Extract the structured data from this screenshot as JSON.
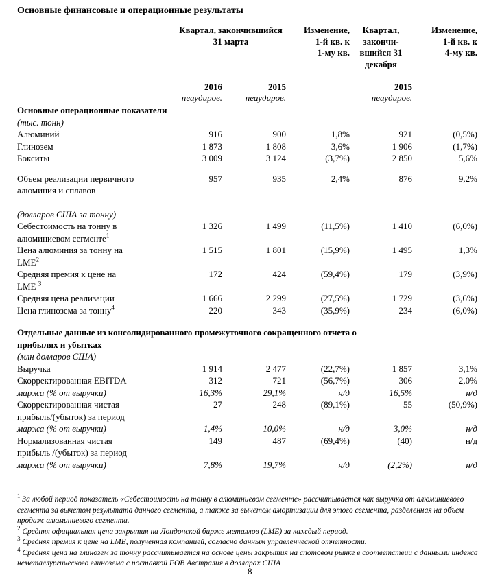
{
  "page": {
    "title": "Основные финансовые и операционные результаты",
    "page_number": "8"
  },
  "table": {
    "header": {
      "q1_group": "Квартал, закончившийся\n31 марта",
      "change_q1": "Изменение,\n1-й кв. к\n1-му кв.",
      "q4_group": "Квартал,\nзакончи-\nвшийся 31\nдекабря",
      "change_q4": "Изменение,\n1-й кв. к\n4-му кв.",
      "years": [
        "2016",
        "2015",
        "",
        "2015",
        ""
      ],
      "unaudited": [
        "неаудиров.",
        "неаудиров.",
        "",
        "неаудиров.",
        ""
      ]
    },
    "rows": [
      {
        "t": "s",
        "l": "Основные операционные показатели"
      },
      {
        "t": "n",
        "l": "(тыс. тонн)"
      },
      {
        "t": "d",
        "l": "Алюминий",
        "v": [
          "916",
          "900",
          "1,8%",
          "921",
          "(0,5%)"
        ]
      },
      {
        "t": "d",
        "l": "Глинозем",
        "v": [
          "1 873",
          "1 808",
          "3,6%",
          "1 906",
          "(1,7%)"
        ]
      },
      {
        "t": "d",
        "l": "Бокситы",
        "v": [
          "3 009",
          "3 124",
          "(3,7%)",
          "2 850",
          "5,6%"
        ]
      },
      {
        "t": "sp",
        "h": 12
      },
      {
        "t": "d",
        "l": "Объем реализации первичного",
        "l2": "алюминия и сплавов",
        "v": [
          "957",
          "935",
          "2,4%",
          "876",
          "9,2%"
        ]
      },
      {
        "t": "sp",
        "h": 17
      },
      {
        "t": "n",
        "l": "(долларов США за тонну)"
      },
      {
        "t": "d",
        "l": "Себестоимость на тонну в",
        "l2": "алюминиевом сегменте",
        "s2": "1",
        "v": [
          "1 326",
          "1 499",
          "(11,5%)",
          "1 410",
          "(6,0%)"
        ]
      },
      {
        "t": "d",
        "l": "Цена алюминия за тонну на",
        "l2": "LME",
        "s2": "2",
        "v": [
          "1 515",
          "1 801",
          "(15,9%)",
          "1 495",
          "1,3%"
        ]
      },
      {
        "t": "d",
        "l": "Средняя премия к цене на",
        "l2": "LME ",
        "s2": "3",
        "v": [
          "172",
          "424",
          "(59,4%)",
          "179",
          "(3,9%)"
        ]
      },
      {
        "t": "d",
        "l": "Средняя цена реализации",
        "v": [
          "1 666",
          "2 299",
          "(27,5%)",
          "1 729",
          "(3,6%)"
        ]
      },
      {
        "t": "d",
        "l": "Цена глинозема за тонну",
        "s1": "4",
        "v": [
          "220",
          "343",
          "(35,9%)",
          "234",
          "(6,0%)"
        ]
      },
      {
        "t": "sp",
        "h": 14
      },
      {
        "t": "s",
        "l": "Отдельные данные из консолидированного промежуточного сокращенного отчета о\nприбылях и убытках"
      },
      {
        "t": "n",
        "l": "(млн долларов США)"
      },
      {
        "t": "d",
        "l": "Выручка",
        "v": [
          "1 914",
          "2 477",
          "(22,7%)",
          "1 857",
          "3,1%"
        ]
      },
      {
        "t": "d",
        "l": "Скорректированная EBITDA",
        "v": [
          "312",
          "721",
          "(56,7%)",
          "306",
          "2,0%"
        ]
      },
      {
        "t": "i",
        "l": "маржа (% от выручки)",
        "v": [
          "16,3%",
          "29,1%",
          "н/д",
          "16,5%",
          "н/д"
        ]
      },
      {
        "t": "d",
        "l": "Скорректированная чистая",
        "l2": "прибыль/(убыток) за период",
        "v": [
          "27",
          "248",
          "(89,1%)",
          "55",
          "(50,9%)"
        ]
      },
      {
        "t": "i",
        "l": "маржа (% от выручки)",
        "v": [
          "1,4%",
          "10,0%",
          "н/д",
          "3,0%",
          "н/д"
        ]
      },
      {
        "t": "d",
        "l": "Нормализованная чистая",
        "l2": "прибыль /(убыток) за период",
        "v": [
          "149",
          "487",
          "(69,4%)",
          "(40)",
          "н/д"
        ]
      },
      {
        "t": "i",
        "l": "маржа (% от выручки)",
        "v": [
          "7,8%",
          "19,7%",
          "н/д",
          "(2,2%)",
          "н/д"
        ]
      }
    ]
  },
  "footnotes": [
    {
      "num": "1",
      "text": "За любой период показатель «Себестоимость на тонну в алюминиевом сегменте» рассчитывается как выручка от алюминиевого сегмента за вычетом результата данного сегмента, а также за вычетом амортизации для этого сегмента, разделенная на объем продаж алюминиевого сегмента."
    },
    {
      "num": "2",
      "text": "Средняя официальная цена закрытия на Лондонской бирже металлов (LME) за каждый период."
    },
    {
      "num": "3",
      "text": "Средняя премия к цене на LME, полученная компанией, согласно данным управленческой отчетности."
    },
    {
      "num": "4",
      "text": "Средняя цена на глинозем за тонну рассчитывается на основе цены закрытия на спотовом рынке в соответствии с данными индекса неметаллургического глинозема с поставкой FOB Австралия в долларах США"
    }
  ]
}
